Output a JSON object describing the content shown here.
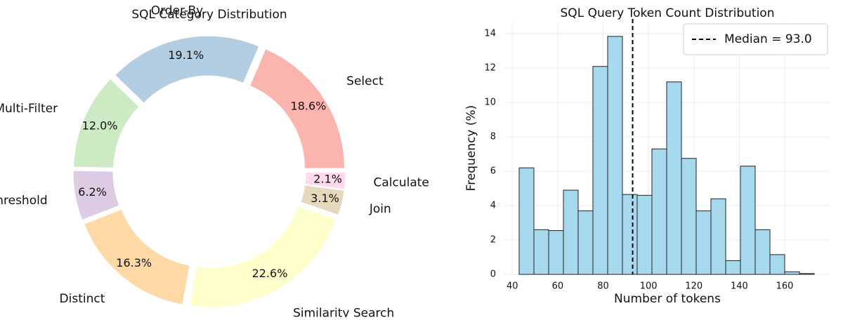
{
  "chart_data": [
    {
      "type": "pie",
      "title": "SQL Category Distribution",
      "categories": [
        "Select",
        "Order-By",
        "Multi-Filter",
        "Threshold",
        "Distinct",
        "Similarity Search",
        "Join",
        "Calculate"
      ],
      "values": [
        18.6,
        19.1,
        12.0,
        6.2,
        16.3,
        22.6,
        3.1,
        2.1
      ],
      "value_labels": [
        "18.6%",
        "19.1%",
        "12.0%",
        "6.2%",
        "16.3%",
        "22.6%",
        "3.1%",
        "2.1%"
      ],
      "colors": [
        "#fbb4ae",
        "#b3cde3",
        "#ccebc5",
        "#decbe4",
        "#fed9a6",
        "#ffffcc",
        "#e5d8bd",
        "#fddaec"
      ]
    },
    {
      "type": "histogram",
      "title": "SQL Query Token Count Distribution",
      "x_label": "Number of tokens",
      "y_label": "Frequency (%)",
      "bins": [
        43,
        49.5,
        56,
        62.5,
        69,
        75.5,
        82,
        88.5,
        95,
        101.5,
        108,
        114.5,
        121,
        127.5,
        134,
        140.5,
        147,
        153.5,
        160,
        166.5,
        173
      ],
      "values": [
        6.2,
        2.6,
        2.55,
        4.9,
        3.7,
        12.1,
        13.85,
        4.65,
        4.6,
        7.3,
        11.2,
        6.75,
        3.7,
        4.4,
        0.8,
        6.3,
        2.6,
        1.15,
        0.15,
        0.05
      ],
      "color": "#a6d8ee",
      "median_line": {
        "value": 93.0,
        "label": "Median = 93.0"
      },
      "xlim": [
        36.5,
        179.5
      ],
      "ylim": [
        0,
        14.7
      ],
      "xticks": [
        40,
        60,
        80,
        100,
        120,
        140,
        160
      ],
      "yticks": [
        0,
        2,
        4,
        6,
        8,
        10,
        12,
        14
      ],
      "grid": true,
      "legend": "upper right"
    }
  ]
}
